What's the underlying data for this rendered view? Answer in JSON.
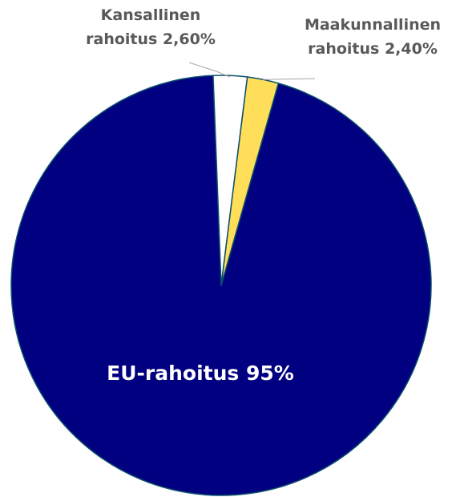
{
  "chart_data": {
    "type": "pie",
    "slices": [
      {
        "name": "EU-rahoitus",
        "value": 95,
        "label": "EU-rahoitus 95%",
        "color": "#000080"
      },
      {
        "name": "Kansallinen rahoitus",
        "value": 2.6,
        "label_lines": [
          "Kansallinen",
          "rahoitus 2,60%"
        ],
        "color": "#ffffff"
      },
      {
        "name": "Maakunnallinen rahoitus",
        "value": 2.4,
        "label_lines": [
          "Maakunnallinen",
          "rahoitus 2,40%"
        ],
        "color": "#ffde59"
      }
    ],
    "slice_border_color": "#0b4f6c",
    "leader_line_color": "#a6a6a6",
    "label_color": "#595959",
    "inner_label_color": "#ffffff"
  }
}
